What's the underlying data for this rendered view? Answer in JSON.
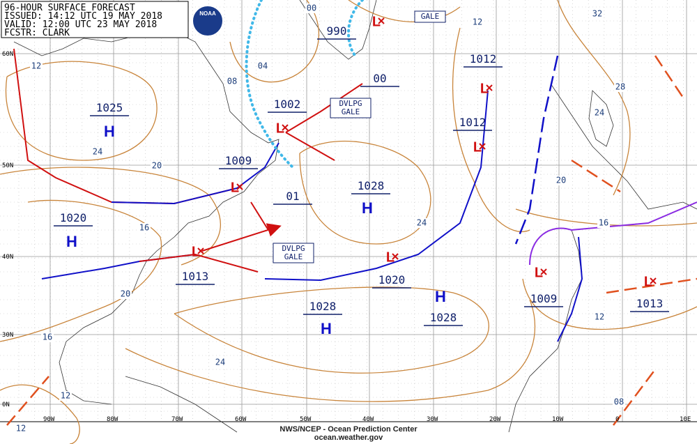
{
  "header": {
    "lines": [
      "96-HOUR SURFACE FORECAST",
      "ISSUED: 14:12 UTC 19 MAY 2018",
      "VALID:  12:00 UTC 23 MAY 2018",
      "FCSTR: CLARK"
    ]
  },
  "logo": "NOAA",
  "pressure_labels": [
    "1025",
    "1020",
    "1009",
    "1002",
    "990",
    "00",
    "1012",
    "1012",
    "1028",
    "01",
    "1013",
    "1020",
    "1028",
    "1028",
    "1009",
    "1013"
  ],
  "highs": [
    "H",
    "H",
    "H",
    "H",
    "H"
  ],
  "lows": [
    "L",
    "L",
    "L",
    "L",
    "L",
    "L",
    "L",
    "L",
    "L"
  ],
  "contour_labels": [
    "12",
    "08",
    "04",
    "00",
    "24",
    "20",
    "16",
    "20",
    "16",
    "24",
    "12",
    "12",
    "24",
    "12",
    "32",
    "28",
    "24",
    "20",
    "16",
    "12",
    "08"
  ],
  "warnings": [
    "GALE",
    "DVLPG GALE",
    "DVLPG GALE"
  ],
  "lat_labels": [
    "60N",
    "50N",
    "40N",
    "30N",
    "0N"
  ],
  "lon_labels": [
    "90W",
    "80W",
    "70W",
    "60W",
    "50W",
    "40W",
    "30W",
    "20W",
    "10W",
    "0",
    "10E"
  ],
  "footer": [
    "NWS/NCEP - Ocean Prediction Center",
    "ocean.weather.gov"
  ]
}
